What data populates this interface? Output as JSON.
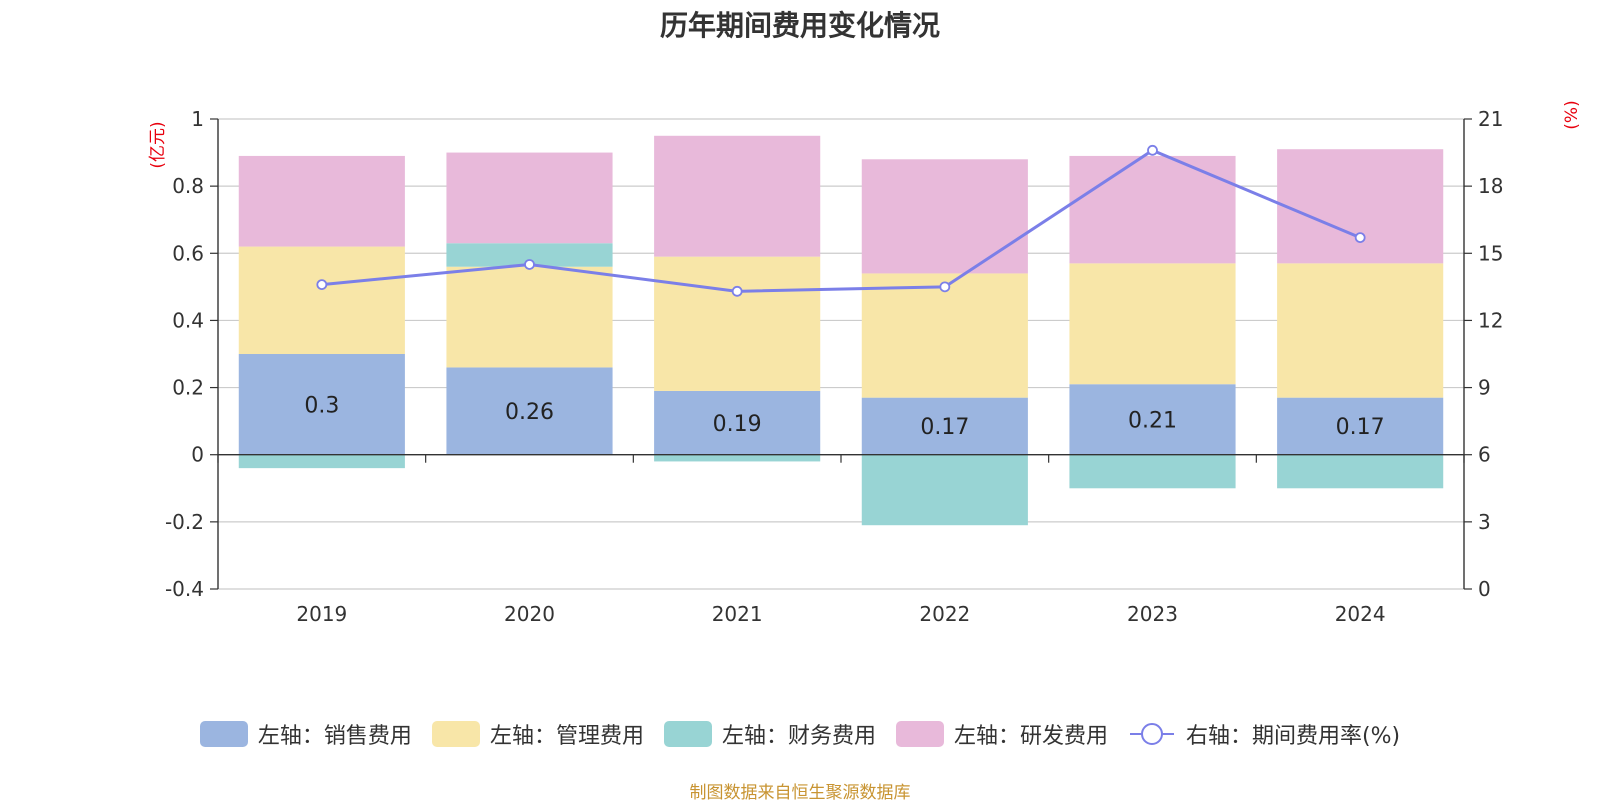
{
  "title": "历年期间费用变化情况",
  "source": "制图数据来自恒生聚源数据库",
  "chart_data": {
    "type": "bar",
    "stacked": true,
    "categories": [
      "2019",
      "2020",
      "2021",
      "2022",
      "2023",
      "2024"
    ],
    "left_axis": {
      "unit": "(亿元)",
      "ylim": [
        -0.4,
        1
      ],
      "ticks": [
        "1",
        "0.8",
        "0.6",
        "0.4",
        "0.2",
        "0",
        "-0.2",
        "-0.4"
      ]
    },
    "right_axis": {
      "unit": "(%)",
      "ylim": [
        0,
        21
      ],
      "ticks": [
        "21",
        "18",
        "15",
        "12",
        "9",
        "6",
        "3",
        "0"
      ]
    },
    "series": [
      {
        "name": "左轴：销售费用",
        "color": "#9bb5e0",
        "values": [
          0.3,
          0.26,
          0.19,
          0.17,
          0.21,
          0.17
        ],
        "labels": [
          "0.3",
          "0.26",
          "0.19",
          "0.17",
          "0.21",
          "0.17"
        ]
      },
      {
        "name": "左轴：管理费用",
        "color": "#f8e6a8",
        "values": [
          0.32,
          0.3,
          0.4,
          0.37,
          0.36,
          0.4
        ]
      },
      {
        "name": "左轴：财务费用",
        "color": "#98d4d4",
        "values": [
          -0.04,
          0.07,
          -0.02,
          -0.21,
          -0.1,
          -0.1
        ]
      },
      {
        "name": "左轴：研发费用",
        "color": "#e8b9da",
        "values": [
          0.27,
          0.27,
          0.36,
          0.34,
          0.32,
          0.34
        ]
      }
    ],
    "line_series": {
      "name": "右轴：期间费用率(%)",
      "color": "#7b7fe8",
      "axis": "right",
      "values": [
        13.6,
        14.5,
        13.3,
        13.5,
        19.6,
        15.7
      ]
    },
    "grid": true,
    "legend_position": "bottom"
  }
}
